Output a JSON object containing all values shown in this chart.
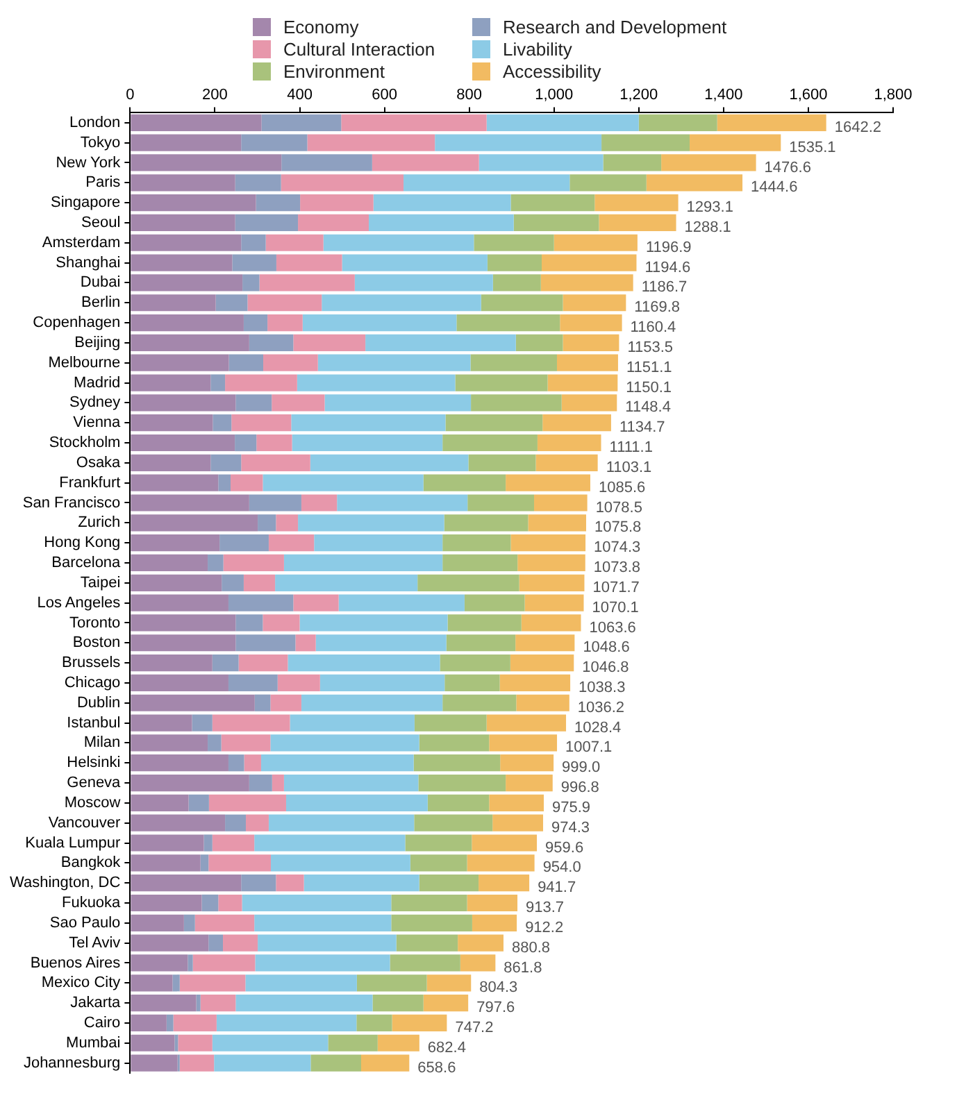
{
  "chart_data": {
    "type": "bar",
    "orientation": "horizontal",
    "stacked": true,
    "grid": false,
    "legend": "top",
    "categories": [
      "London",
      "Tokyo",
      "New York",
      "Paris",
      "Singapore",
      "Seoul",
      "Amsterdam",
      "Shanghai",
      "Dubai",
      "Berlin",
      "Copenhagen",
      "Beijing",
      "Melbourne",
      "Madrid",
      "Sydney",
      "Vienna",
      "Stockholm",
      "Osaka",
      "Frankfurt",
      "San Francisco",
      "Zurich",
      "Hong Kong",
      "Barcelona",
      "Taipei",
      "Los Angeles",
      "Toronto",
      "Boston",
      "Brussels",
      "Chicago",
      "Dublin",
      "Istanbul",
      "Milan",
      "Helsinki",
      "Geneva",
      "Moscow",
      "Vancouver",
      "Kuala Lumpur",
      "Bangkok",
      "Washington, DC",
      "Fukuoka",
      "Sao Paulo",
      "Tel Aviv",
      "Buenos Aires",
      "Mexico City",
      "Jakarta",
      "Cairo",
      "Mumbai",
      "Johannesburg"
    ],
    "xlim": [
      0,
      1800
    ],
    "xticks": [
      0,
      200,
      400,
      600,
      800,
      {
        "value": 1000,
        "label": "1,000"
      },
      {
        "value": 1200,
        "label": "1,200"
      },
      {
        "value": 1400,
        "label": "1,400"
      },
      {
        "value": 1600,
        "label": "1,600"
      },
      {
        "value": 1800,
        "label": "1,800"
      }
    ],
    "series": [
      {
        "name": "Economy",
        "color": "#a487ac",
        "values": [
          310,
          262,
          357,
          248,
          297,
          248,
          262,
          241,
          265,
          202,
          268,
          281,
          233,
          190,
          249,
          195,
          247,
          190,
          208,
          281,
          301,
          211,
          183,
          216,
          232,
          249,
          249,
          194,
          232,
          294,
          146,
          183,
          232,
          281,
          138,
          224,
          174,
          166,
          262,
          169,
          127,
          185,
          136,
          100,
          156,
          86,
          105,
          112
        ]
      },
      {
        "name": "Research and Development",
        "color": "#8ea0c0",
        "values": [
          188,
          156,
          214,
          108,
          104,
          148,
          58,
          104,
          40,
          75,
          56,
          104,
          81,
          34,
          85,
          44,
          51,
          72,
          29,
          123,
          43,
          116,
          37,
          52,
          153,
          64,
          141,
          62,
          116,
          37,
          48,
          32,
          37,
          54,
          48,
          49,
          20,
          19,
          82,
          39,
          26,
          34,
          12,
          17,
          10,
          16,
          8,
          5
        ]
      },
      {
        "name": "Cultural Interaction",
        "color": "#e797ab",
        "values": [
          343,
          301,
          252,
          289,
          173,
          167,
          136,
          155,
          225,
          175,
          83,
          170,
          129,
          170,
          125,
          141,
          84,
          163,
          76,
          84,
          52,
          107,
          143,
          74,
          107,
          87,
          48,
          116,
          100,
          73,
          183,
          116,
          40,
          28,
          182,
          54,
          99,
          147,
          66,
          56,
          140,
          82,
          147,
          155,
          83,
          102,
          81,
          81
        ]
      },
      {
        "name": "Livability",
        "color": "#8ccbe6",
        "values": [
          359,
          393,
          293,
          392,
          324,
          342,
          355,
          343,
          326,
          376,
          363,
          355,
          360,
          373,
          345,
          364,
          355,
          373,
          379,
          308,
          345,
          303,
          374,
          336,
          297,
          349,
          308,
          359,
          294,
          333,
          294,
          351,
          360,
          317,
          334,
          343,
          356,
          329,
          272,
          352,
          323,
          327,
          318,
          263,
          323,
          330,
          273,
          228
        ]
      },
      {
        "name": "Environment",
        "color": "#a9c27c",
        "values": [
          185,
          208,
          137,
          181,
          198,
          201,
          189,
          128,
          113,
          193,
          244,
          111,
          204,
          218,
          214,
          229,
          224,
          159,
          194,
          157,
          198,
          161,
          177,
          240,
          142,
          174,
          163,
          166,
          130,
          174,
          170,
          165,
          204,
          206,
          145,
          185,
          157,
          134,
          140,
          179,
          191,
          145,
          166,
          165,
          120,
          84,
          117,
          119
        ]
      },
      {
        "name": "Accessibility",
        "color": "#f2bb62",
        "values": [
          257.2,
          215.1,
          223.6,
          226.6,
          197.1,
          182.1,
          196.9,
          223.6,
          217.7,
          148.8,
          146.4,
          132.5,
          144.1,
          165.1,
          130.4,
          161.7,
          150.1,
          146.1,
          199.6,
          125.5,
          136.8,
          176.3,
          159.8,
          153.7,
          139.1,
          140.6,
          139.6,
          149.8,
          166.3,
          125.2,
          187.4,
          160.1,
          126.0,
          110.8,
          128.9,
          119.3,
          153.6,
          159.0,
          119.7,
          118.7,
          105.2,
          107.8,
          82.8,
          104.3,
          105.6,
          129.2,
          98.4,
          113.6
        ]
      }
    ],
    "totals": [
      "1642.2",
      "1535.1",
      "1476.6",
      "1444.6",
      "1293.1",
      "1288.1",
      "1196.9",
      "1194.6",
      "1186.7",
      "1169.8",
      "1160.4",
      "1153.5",
      "1151.1",
      "1150.1",
      "1148.4",
      "1134.7",
      "1111.1",
      "1103.1",
      "1085.6",
      "1078.5",
      "1075.8",
      "1074.3",
      "1073.8",
      "1071.7",
      "1070.1",
      "1063.6",
      "1048.6",
      "1046.8",
      "1038.3",
      "1036.2",
      "1028.4",
      "1007.1",
      "999.0",
      "996.8",
      "975.9",
      "974.3",
      "959.6",
      "954.0",
      "941.7",
      "913.7",
      "912.2",
      "880.8",
      "861.8",
      "804.3",
      "797.6",
      "747.2",
      "682.4",
      "658.6"
    ]
  }
}
